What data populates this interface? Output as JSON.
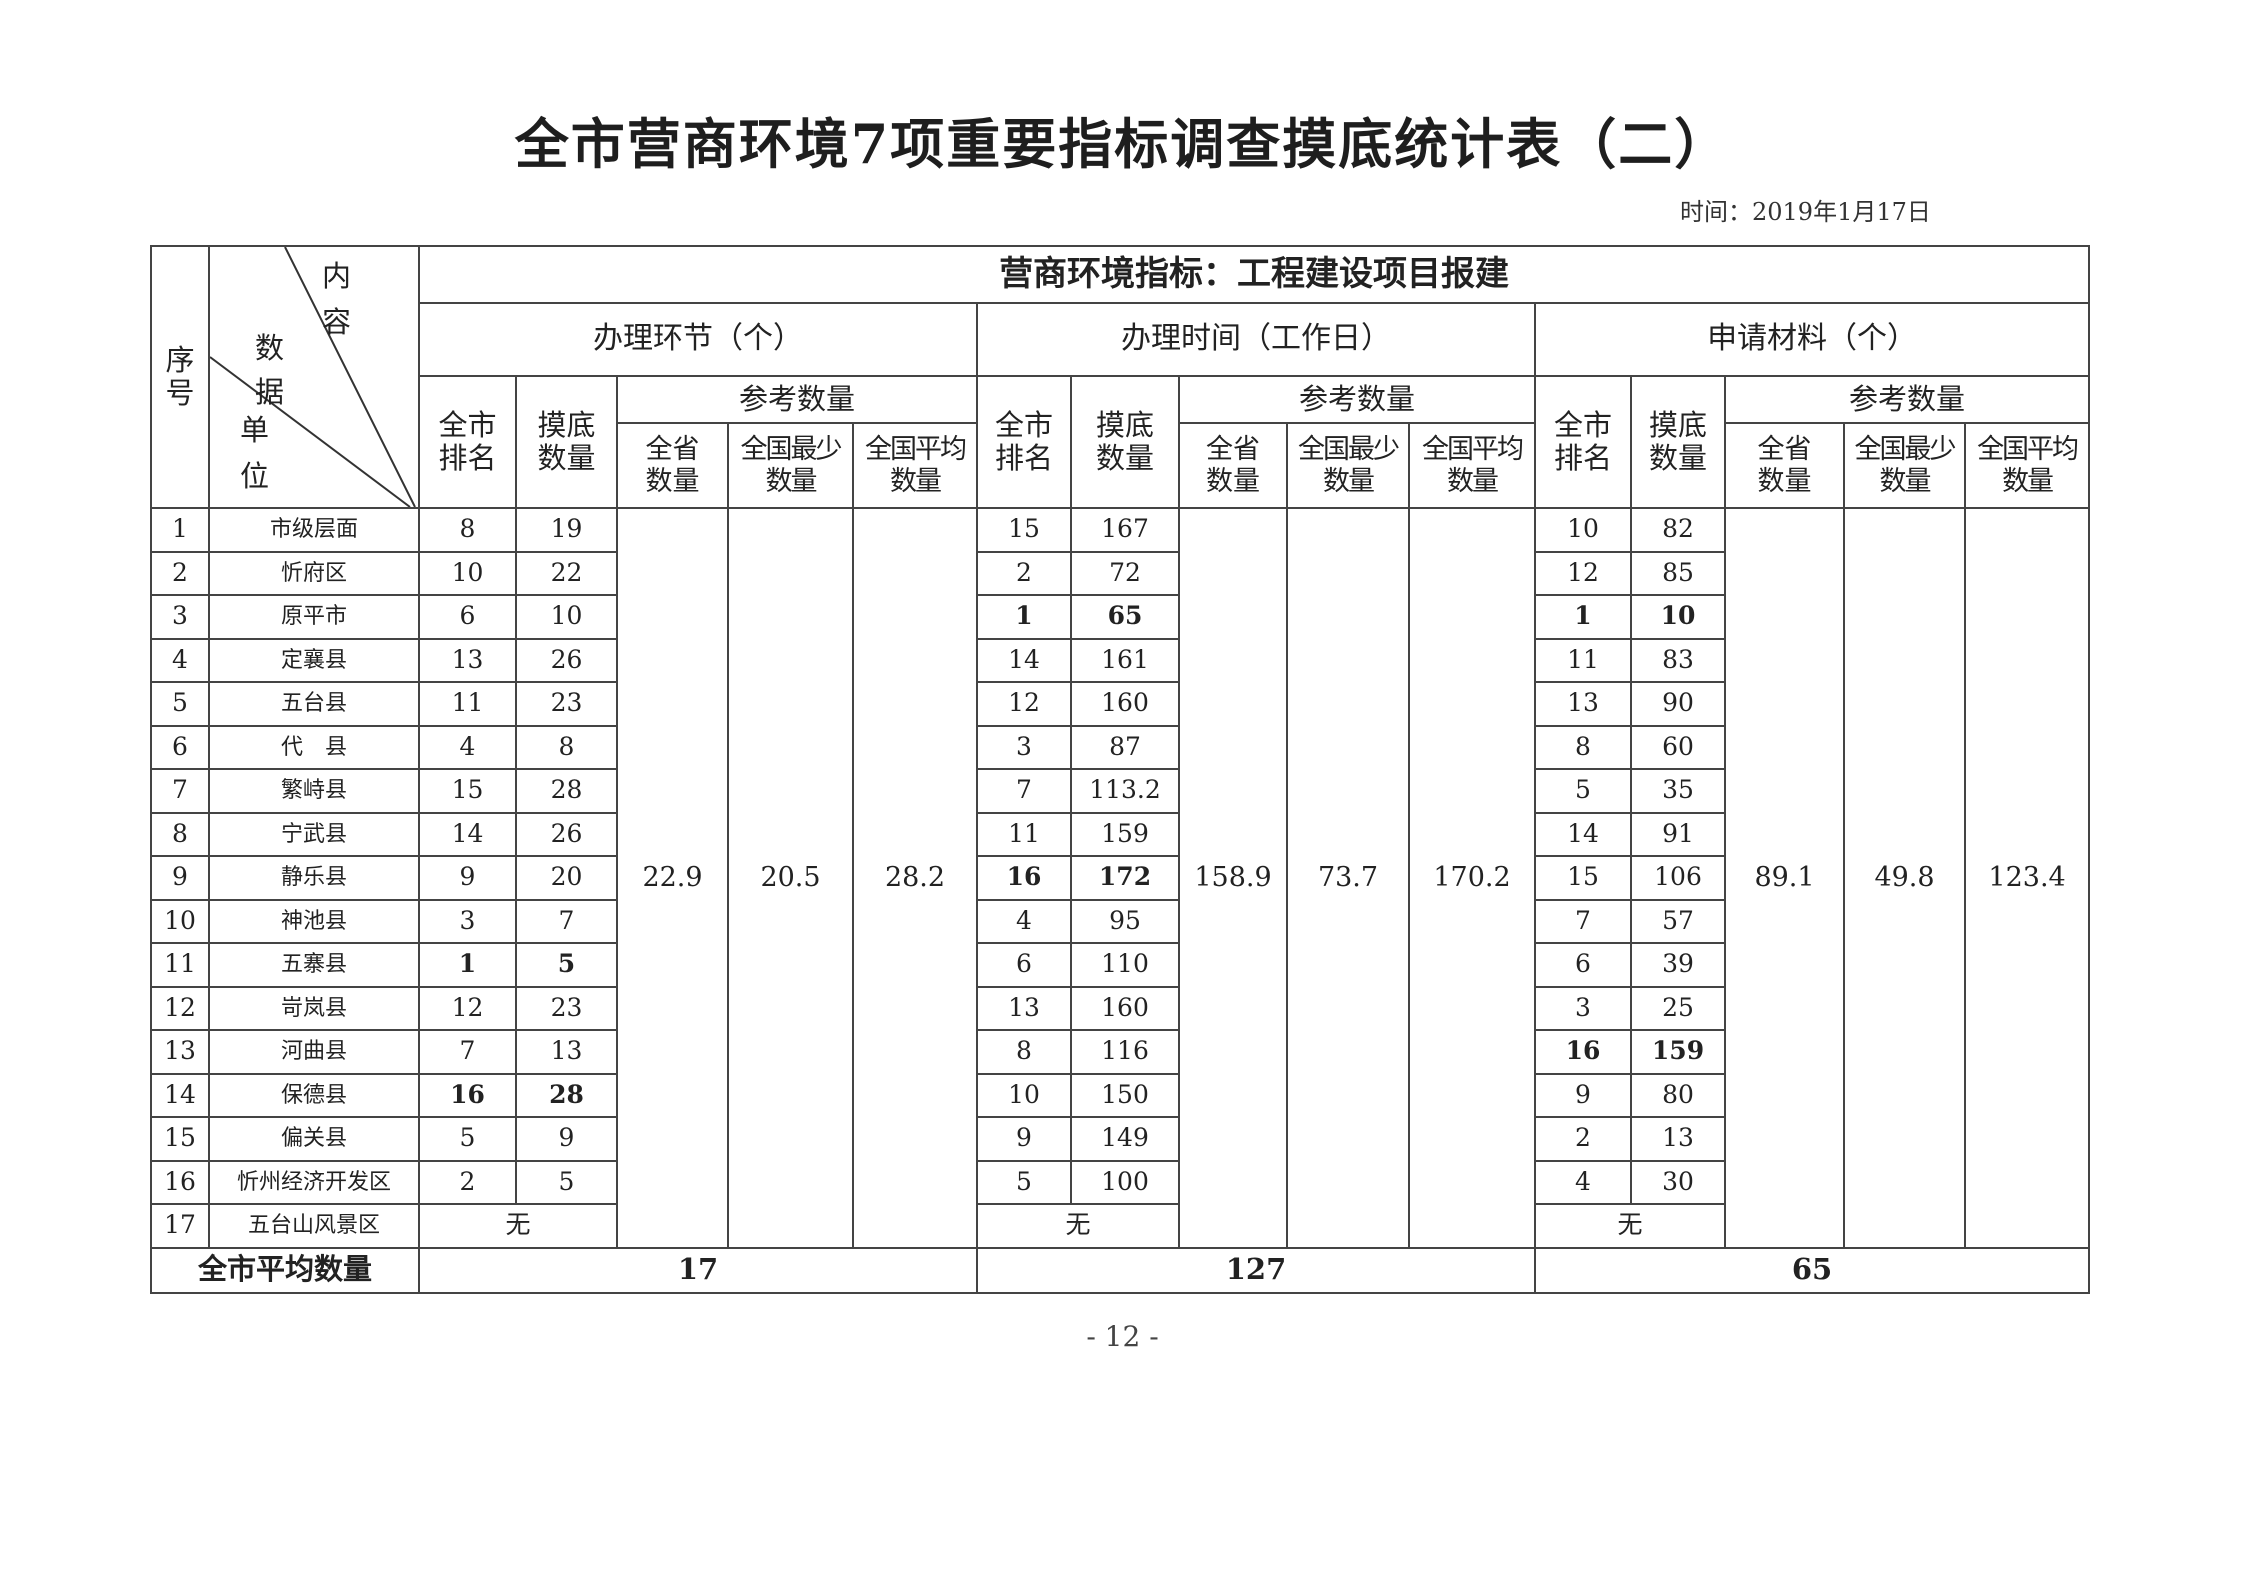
{
  "title": "全市营商环境7项重要指标调查摸底统计表（二）",
  "date": "时间：2019年1月17日",
  "table": {
    "header_corner": {
      "seq": "序号",
      "content": "内容",
      "data": "数据",
      "unit": "单位"
    },
    "indicator": "营商环境指标：工程建设项目报建",
    "sections": [
      {
        "label": "办理环节（个）"
      },
      {
        "label": "办理时间（工作日）"
      },
      {
        "label": "申请材料（个）"
      }
    ],
    "sub_headers": {
      "rank": "全市排名",
      "survey": "摸底数量",
      "reference": "参考数量",
      "province": "全省数量",
      "nation_min": "全国最少数量",
      "nation_avg": "全国平均数量"
    },
    "reference_values": [
      {
        "province": "22.9",
        "nation_min": "20.5",
        "nation_avg": "28.2"
      },
      {
        "province": "158.9",
        "nation_min": "73.7",
        "nation_avg": "170.2"
      },
      {
        "province": "89.1",
        "nation_min": "49.8",
        "nation_avg": "123.4"
      }
    ],
    "rows": [
      {
        "seq": "1",
        "unit": "市级层面",
        "s": [
          [
            "8",
            "19"
          ],
          [
            "15",
            "167"
          ],
          [
            "10",
            "82"
          ]
        ],
        "bold": [
          false,
          false,
          false
        ]
      },
      {
        "seq": "2",
        "unit": "忻府区",
        "s": [
          [
            "10",
            "22"
          ],
          [
            "2",
            "72"
          ],
          [
            "12",
            "85"
          ]
        ],
        "bold": [
          false,
          false,
          false
        ]
      },
      {
        "seq": "3",
        "unit": "原平市",
        "s": [
          [
            "6",
            "10"
          ],
          [
            "1",
            "65"
          ],
          [
            "1",
            "10"
          ]
        ],
        "bold": [
          false,
          true,
          true
        ]
      },
      {
        "seq": "4",
        "unit": "定襄县",
        "s": [
          [
            "13",
            "26"
          ],
          [
            "14",
            "161"
          ],
          [
            "11",
            "83"
          ]
        ],
        "bold": [
          false,
          false,
          false
        ]
      },
      {
        "seq": "5",
        "unit": "五台县",
        "s": [
          [
            "11",
            "23"
          ],
          [
            "12",
            "160"
          ],
          [
            "13",
            "90"
          ]
        ],
        "bold": [
          false,
          false,
          false
        ]
      },
      {
        "seq": "6",
        "unit": "代　县",
        "s": [
          [
            "4",
            "8"
          ],
          [
            "3",
            "87"
          ],
          [
            "8",
            "60"
          ]
        ],
        "bold": [
          false,
          false,
          false
        ]
      },
      {
        "seq": "7",
        "unit": "繁峙县",
        "s": [
          [
            "15",
            "28"
          ],
          [
            "7",
            "113.2"
          ],
          [
            "5",
            "35"
          ]
        ],
        "bold": [
          false,
          false,
          false
        ]
      },
      {
        "seq": "8",
        "unit": "宁武县",
        "s": [
          [
            "14",
            "26"
          ],
          [
            "11",
            "159"
          ],
          [
            "14",
            "91"
          ]
        ],
        "bold": [
          false,
          false,
          false
        ]
      },
      {
        "seq": "9",
        "unit": "静乐县",
        "s": [
          [
            "9",
            "20"
          ],
          [
            "16",
            "172"
          ],
          [
            "15",
            "106"
          ]
        ],
        "bold": [
          false,
          true,
          false
        ]
      },
      {
        "seq": "10",
        "unit": "神池县",
        "s": [
          [
            "3",
            "7"
          ],
          [
            "4",
            "95"
          ],
          [
            "7",
            "57"
          ]
        ],
        "bold": [
          false,
          false,
          false
        ]
      },
      {
        "seq": "11",
        "unit": "五寨县",
        "s": [
          [
            "1",
            "5"
          ],
          [
            "6",
            "110"
          ],
          [
            "6",
            "39"
          ]
        ],
        "bold": [
          true,
          false,
          false
        ]
      },
      {
        "seq": "12",
        "unit": "岢岚县",
        "s": [
          [
            "12",
            "23"
          ],
          [
            "13",
            "160"
          ],
          [
            "3",
            "25"
          ]
        ],
        "bold": [
          false,
          false,
          false
        ]
      },
      {
        "seq": "13",
        "unit": "河曲县",
        "s": [
          [
            "7",
            "13"
          ],
          [
            "8",
            "116"
          ],
          [
            "16",
            "159"
          ]
        ],
        "bold": [
          false,
          false,
          true
        ]
      },
      {
        "seq": "14",
        "unit": "保德县",
        "s": [
          [
            "16",
            "28"
          ],
          [
            "10",
            "150"
          ],
          [
            "9",
            "80"
          ]
        ],
        "bold": [
          true,
          false,
          false
        ]
      },
      {
        "seq": "15",
        "unit": "偏关县",
        "s": [
          [
            "5",
            "9"
          ],
          [
            "9",
            "149"
          ],
          [
            "2",
            "13"
          ]
        ],
        "bold": [
          false,
          false,
          false
        ]
      },
      {
        "seq": "16",
        "unit": "忻州经济开发区",
        "s": [
          [
            "2",
            "5"
          ],
          [
            "5",
            "100"
          ],
          [
            "4",
            "30"
          ]
        ],
        "bold": [
          false,
          false,
          false
        ]
      },
      {
        "seq": "17",
        "unit": "五台山风景区",
        "none": "无"
      }
    ],
    "average": {
      "label": "全市平均数量",
      "values": [
        "17",
        "127",
        "65"
      ]
    }
  },
  "page_number": "- 12 -"
}
